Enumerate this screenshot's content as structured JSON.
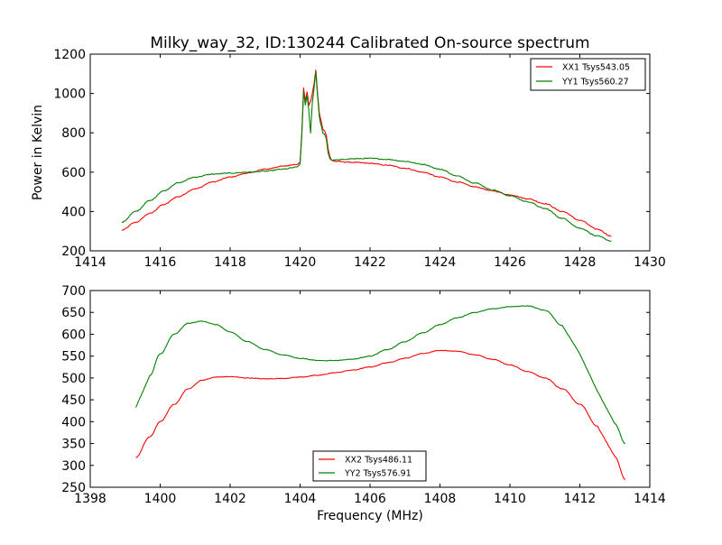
{
  "chart_data": [
    {
      "type": "line",
      "title": "Milky_way_32, ID:130244 Calibrated On-source spectrum",
      "xlabel": "",
      "ylabel": "Power in Kelvin",
      "xlim": [
        1414,
        1430
      ],
      "ylim": [
        200,
        1200
      ],
      "xticks": [
        1414,
        1416,
        1418,
        1420,
        1422,
        1424,
        1426,
        1428,
        1430
      ],
      "yticks": [
        200,
        400,
        600,
        800,
        1000,
        1200
      ],
      "legend_position": "top-right",
      "grid": false,
      "series": [
        {
          "name": "XX1 Tsys543.05",
          "color": "#ff0000",
          "x": [
            1414.9,
            1415.3,
            1415.7,
            1416.1,
            1416.5,
            1417.0,
            1417.5,
            1418.0,
            1418.5,
            1419.0,
            1419.5,
            1419.9,
            1420.0,
            1420.05,
            1420.1,
            1420.15,
            1420.2,
            1420.25,
            1420.3,
            1420.35,
            1420.4,
            1420.45,
            1420.5,
            1420.55,
            1420.6,
            1420.65,
            1420.7,
            1420.75,
            1420.8,
            1420.85,
            1420.9,
            1421.0,
            1421.5,
            1422.0,
            1422.5,
            1423.0,
            1423.5,
            1424.0,
            1424.5,
            1425.0,
            1425.5,
            1426.0,
            1426.5,
            1427.0,
            1427.5,
            1428.0,
            1428.5,
            1428.9
          ],
          "y": [
            305,
            345,
            390,
            435,
            475,
            515,
            550,
            575,
            595,
            615,
            630,
            640,
            650,
            800,
            1030,
            960,
            1010,
            940,
            960,
            1000,
            1050,
            1120,
            1000,
            900,
            860,
            820,
            810,
            790,
            720,
            680,
            660,
            655,
            650,
            645,
            635,
            620,
            600,
            575,
            550,
            525,
            505,
            485,
            465,
            440,
            400,
            355,
            310,
            275
          ]
        },
        {
          "name": "YY1 Tsys560.27",
          "color": "#008000",
          "x": [
            1414.9,
            1415.3,
            1415.7,
            1416.1,
            1416.5,
            1417.0,
            1417.5,
            1418.0,
            1418.5,
            1419.0,
            1419.5,
            1419.9,
            1420.0,
            1420.05,
            1420.1,
            1420.15,
            1420.2,
            1420.25,
            1420.3,
            1420.35,
            1420.4,
            1420.45,
            1420.5,
            1420.55,
            1420.6,
            1420.65,
            1420.7,
            1420.75,
            1420.8,
            1420.85,
            1420.9,
            1421.0,
            1421.5,
            1422.0,
            1422.5,
            1423.0,
            1423.5,
            1424.0,
            1424.5,
            1425.0,
            1425.5,
            1426.0,
            1426.5,
            1427.0,
            1427.5,
            1428.0,
            1428.5,
            1428.9
          ],
          "y": [
            345,
            400,
            455,
            505,
            545,
            575,
            590,
            595,
            600,
            605,
            615,
            625,
            640,
            790,
            1010,
            940,
            990,
            910,
            800,
            950,
            1030,
            1110,
            990,
            880,
            840,
            800,
            790,
            770,
            700,
            670,
            660,
            662,
            668,
            670,
            665,
            655,
            640,
            615,
            580,
            545,
            510,
            480,
            450,
            415,
            365,
            315,
            275,
            250
          ]
        }
      ]
    },
    {
      "type": "line",
      "title": "",
      "xlabel": "Frequency (MHz)",
      "ylabel": "",
      "xlim": [
        1398,
        1414
      ],
      "ylim": [
        250,
        700
      ],
      "xticks": [
        1398,
        1400,
        1402,
        1404,
        1406,
        1408,
        1410,
        1412,
        1414
      ],
      "yticks": [
        250,
        300,
        350,
        400,
        450,
        500,
        550,
        600,
        650,
        700
      ],
      "legend_position": "bottom-center",
      "grid": false,
      "series": [
        {
          "name": "XX2 Tsys486.11",
          "color": "#ff0000",
          "x": [
            1399.3,
            1399.7,
            1400.0,
            1400.4,
            1400.8,
            1401.2,
            1401.6,
            1402.0,
            1402.5,
            1403.0,
            1403.5,
            1404.0,
            1404.5,
            1405.0,
            1405.5,
            1406.0,
            1406.5,
            1407.0,
            1407.5,
            1408.0,
            1408.5,
            1409.0,
            1409.5,
            1410.0,
            1410.5,
            1411.0,
            1411.5,
            1412.0,
            1412.5,
            1413.0,
            1413.3
          ],
          "y": [
            318,
            365,
            400,
            440,
            475,
            495,
            502,
            503,
            500,
            498,
            499,
            502,
            506,
            512,
            518,
            525,
            535,
            545,
            556,
            563,
            561,
            553,
            543,
            530,
            515,
            500,
            475,
            440,
            390,
            320,
            268
          ]
        },
        {
          "name": "YY2 Tsys576.91",
          "color": "#008000",
          "x": [
            1399.3,
            1399.7,
            1400.0,
            1400.4,
            1400.8,
            1401.2,
            1401.6,
            1402.0,
            1402.5,
            1403.0,
            1403.5,
            1404.0,
            1404.5,
            1405.0,
            1405.5,
            1406.0,
            1406.5,
            1407.0,
            1407.5,
            1408.0,
            1408.5,
            1409.0,
            1409.5,
            1410.0,
            1410.5,
            1411.0,
            1411.5,
            1412.0,
            1412.5,
            1413.0,
            1413.3
          ],
          "y": [
            432,
            505,
            555,
            600,
            625,
            630,
            622,
            605,
            583,
            565,
            553,
            545,
            540,
            540,
            543,
            550,
            565,
            583,
            603,
            622,
            638,
            650,
            658,
            663,
            665,
            655,
            620,
            555,
            470,
            395,
            350
          ]
        }
      ]
    }
  ]
}
